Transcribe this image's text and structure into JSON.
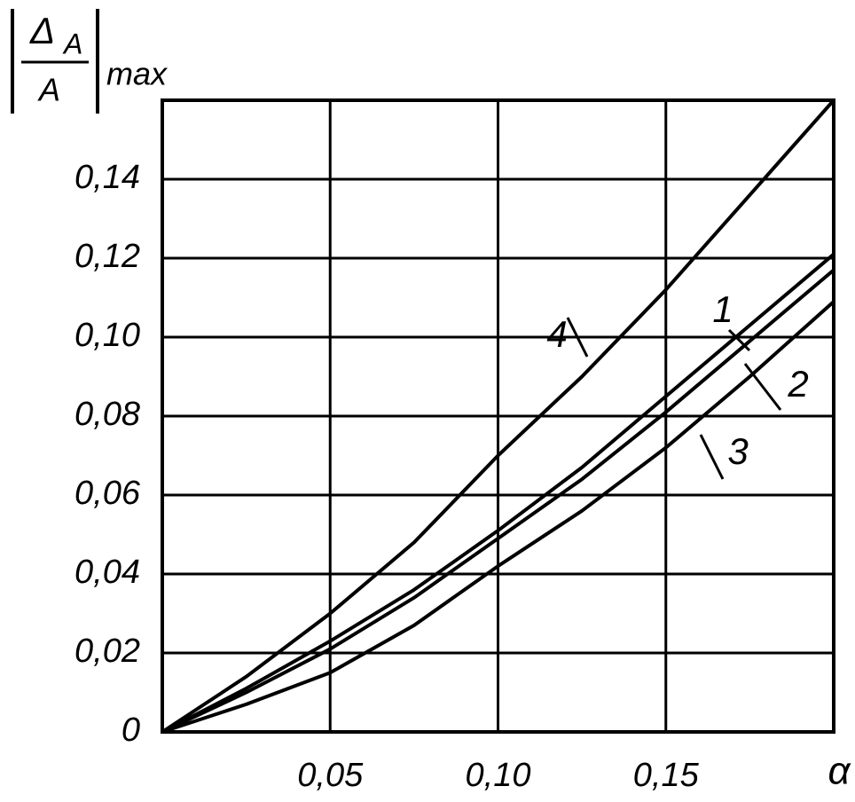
{
  "chart_data": {
    "type": "line",
    "y_label": {
      "symbol": "Δ",
      "subscript": "A",
      "denominator": "A",
      "suffix": "max"
    },
    "x_label": "α",
    "x": [
      0,
      0.025,
      0.05,
      0.075,
      0.1,
      0.125,
      0.15,
      0.175,
      0.2
    ],
    "series": [
      {
        "name": "1",
        "color": "#000000",
        "values": [
          0,
          0.011,
          0.023,
          0.036,
          0.051,
          0.067,
          0.085,
          0.103,
          0.121
        ]
      },
      {
        "name": "2",
        "color": "#000000",
        "values": [
          0,
          0.01,
          0.021,
          0.034,
          0.049,
          0.064,
          0.081,
          0.099,
          0.117
        ]
      },
      {
        "name": "3",
        "color": "#000000",
        "values": [
          0,
          0.007,
          0.015,
          0.027,
          0.042,
          0.056,
          0.072,
          0.09,
          0.109
        ]
      },
      {
        "name": "4",
        "color": "#000000",
        "values": [
          0,
          0.014,
          0.03,
          0.048,
          0.07,
          0.09,
          0.112,
          0.136,
          0.16
        ]
      }
    ],
    "xlim": [
      0,
      0.2
    ],
    "xticks": [
      {
        "value": 0.05,
        "label": "0,05"
      },
      {
        "value": 0.1,
        "label": "0,10"
      },
      {
        "value": 0.15,
        "label": "0,15"
      }
    ],
    "ylim": [
      0,
      0.16
    ],
    "yticks": [
      0,
      {
        "value": 0.02,
        "label": "0,02"
      },
      {
        "value": 0.04,
        "label": "0,04"
      },
      {
        "value": 0.06,
        "label": "0,06"
      },
      {
        "value": 0.08,
        "label": "0,08"
      },
      {
        "value": 0.1,
        "label": "0,10"
      },
      {
        "value": 0.12,
        "label": "0,12"
      },
      {
        "value": 0.14,
        "label": "0,14"
      }
    ],
    "grid": true
  }
}
